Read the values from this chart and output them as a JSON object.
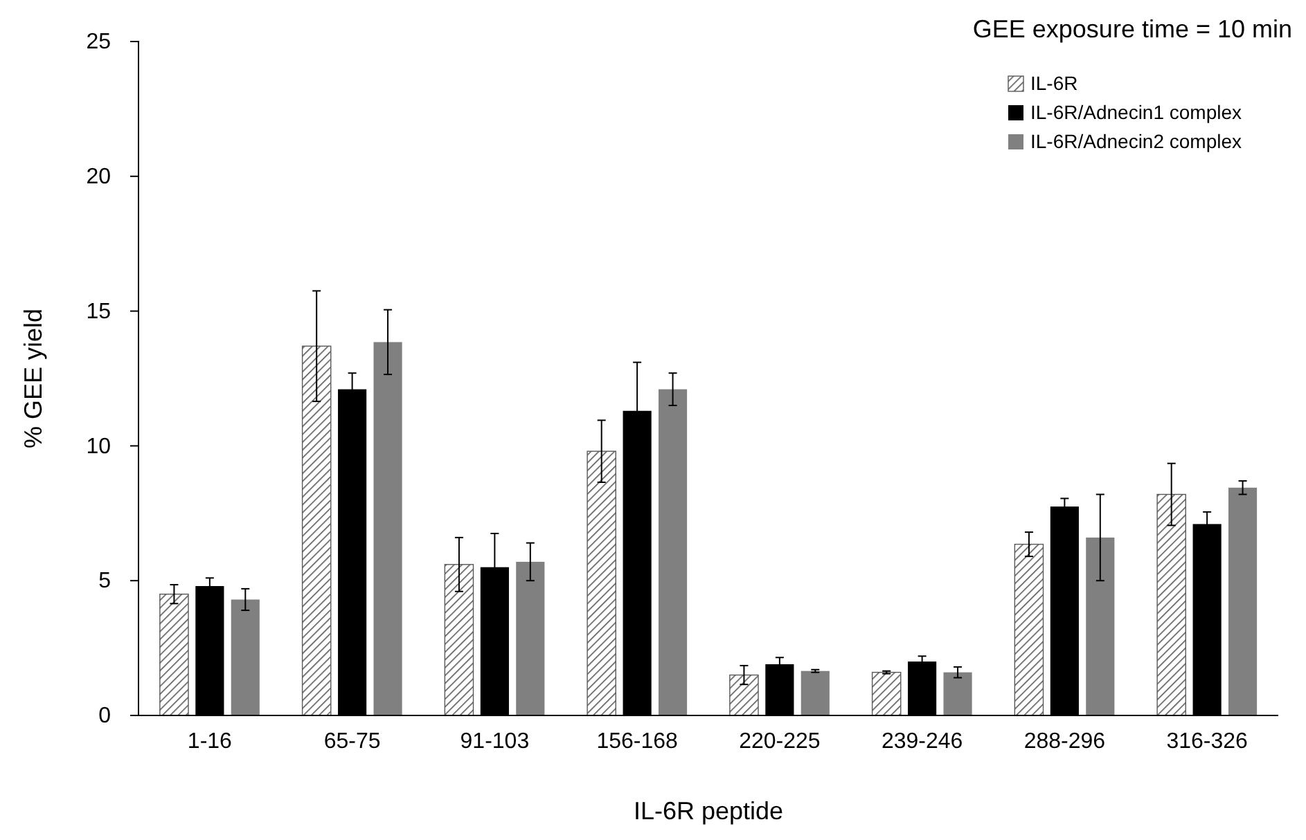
{
  "chart_data": {
    "type": "bar",
    "xlabel": "IL-6R peptide",
    "ylabel": "% GEE yield",
    "annotations": [
      "GEE exposure time = 10 min"
    ],
    "categories": [
      "1-16",
      "65-75",
      "91-103",
      "156-168",
      "220-225",
      "239-246",
      "288-296",
      "316-326"
    ],
    "series": [
      {
        "name": "IL-6R",
        "color": "#595959",
        "values": [
          4.5,
          13.7,
          5.6,
          9.8,
          1.5,
          1.6,
          6.35,
          8.2
        ],
        "errors": [
          0.35,
          2.05,
          1.0,
          1.15,
          0.35,
          0.05,
          0.45,
          1.15
        ]
      },
      {
        "name": "IL-6R/Adnecin1 complex",
        "color": "#000000",
        "values": [
          4.8,
          12.1,
          5.5,
          11.3,
          1.9,
          2.0,
          7.75,
          7.1
        ],
        "errors": [
          0.3,
          0.6,
          1.25,
          1.8,
          0.25,
          0.2,
          0.3,
          0.45
        ]
      },
      {
        "name": "IL-6R/Adnecin2 complex",
        "color": "#808080",
        "values": [
          4.3,
          13.85,
          5.7,
          12.1,
          1.65,
          1.6,
          6.6,
          8.45
        ],
        "errors": [
          0.4,
          1.2,
          0.7,
          0.6,
          0.05,
          0.2,
          1.6,
          0.25
        ]
      }
    ],
    "ylim": [
      0,
      25
    ],
    "yticks": [
      0,
      5,
      10,
      15,
      20,
      25
    ],
    "grid": false,
    "legend": "top right"
  }
}
